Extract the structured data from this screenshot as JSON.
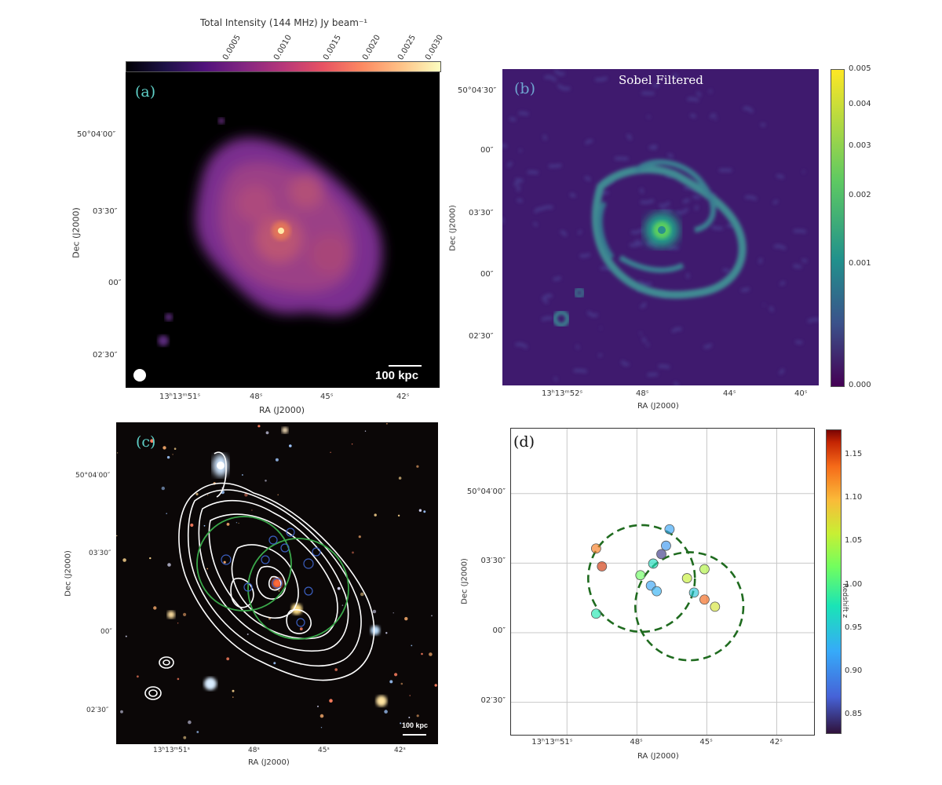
{
  "panel_a": {
    "label": "(a)",
    "colorbar_title": "Total Intensity (144 MHz) Jy beam⁻¹",
    "colorbar_ticks": [
      "0.0005",
      "0.0010",
      "0.0015",
      "0.0020",
      "0.0025",
      "0.0030"
    ],
    "scalebar": "100 kpc",
    "xticks": [
      "13ʰ13ᵐ51ˢ",
      "48ˢ",
      "45ˢ",
      "42ˢ"
    ],
    "yticks": [
      "50°04′00″",
      "03′30″",
      "00″",
      "02′30″"
    ],
    "xlabel": "RA (J2000)",
    "ylabel": "Dec (J2000)"
  },
  "panel_b": {
    "label": "(b)",
    "title": "Sobel Filtered",
    "colorbar_ticks": [
      "0.005",
      "0.004",
      "0.003",
      "0.002",
      "0.001",
      "0.000"
    ],
    "xticks": [
      "13ʰ13ᵐ52ˢ",
      "48ˢ",
      "44ˢ",
      "40ˢ"
    ],
    "yticks": [
      "50°04′30″",
      "00″",
      "03′30″",
      "00″",
      "02′30″"
    ],
    "xlabel": "RA (J2000)",
    "ylabel": "Dec (J2000)"
  },
  "panel_c": {
    "label": "(c)",
    "scalebar": "100 kpc",
    "xticks": [
      "13ʰ13ᵐ51ˢ",
      "48ˢ",
      "45ˢ",
      "42ˢ"
    ],
    "yticks": [
      "50°04′00″",
      "03′30″",
      "00″",
      "02′30″"
    ],
    "xlabel": "RA (J2000)",
    "ylabel": "Dec (J2000)"
  },
  "panel_d": {
    "label": "(d)",
    "xticks": [
      "13ʰ13ᵐ51ˢ",
      "48ˢ",
      "45ˢ",
      "42ˢ"
    ],
    "yticks": [
      "50°04′00″",
      "03′30″",
      "00″",
      "02′30″"
    ],
    "xlabel": "RA (J2000)",
    "ylabel": "Dec (J2000)",
    "colorbar_label": "Redshift z",
    "colorbar_ticks": [
      "1.15",
      "1.10",
      "1.05",
      "1.00",
      "0.95",
      "0.90",
      "0.85"
    ]
  },
  "chart_data": {
    "type": "scatter",
    "xlabel": "RA (J2000)",
    "ylabel": "Dec (J2000)",
    "color_label": "Redshift z",
    "color_range": [
      0.83,
      1.18
    ],
    "grid": true,
    "xticks": [
      "13ʰ13ᵐ51ˢ",
      "48ˢ",
      "45ˢ",
      "42ˢ"
    ],
    "yticks": [
      "50°04′00″",
      "03′30″",
      "00″",
      "02′30″"
    ],
    "x_unit": "RA seconds (13h13m)",
    "y_unit": "Dec arcsec offset from 50°03′00″",
    "points": [
      {
        "x": 49.75,
        "y": 36.3,
        "z": 1.13
      },
      {
        "x": 49.5,
        "y": 28.6,
        "z": 1.16
      },
      {
        "x": 46.6,
        "y": 44.6,
        "z": 0.92
      },
      {
        "x": 46.75,
        "y": 37.5,
        "z": 0.91
      },
      {
        "x": 46.95,
        "y": 33.9,
        "z": 0.85
      },
      {
        "x": 47.3,
        "y": 29.8,
        "z": 0.97
      },
      {
        "x": 47.85,
        "y": 24.8,
        "z": 1.02
      },
      {
        "x": 47.4,
        "y": 20.3,
        "z": 0.92
      },
      {
        "x": 47.15,
        "y": 17.9,
        "z": 0.93
      },
      {
        "x": 45.85,
        "y": 23.5,
        "z": 1.06
      },
      {
        "x": 45.55,
        "y": 17.3,
        "z": 0.95
      },
      {
        "x": 45.1,
        "y": 27.4,
        "z": 1.05
      },
      {
        "x": 45.1,
        "y": 14.3,
        "z": 1.14
      },
      {
        "x": 44.65,
        "y": 11.2,
        "z": 1.07
      },
      {
        "x": 49.75,
        "y": 8.2,
        "z": 0.98
      }
    ],
    "circles": [
      {
        "center_x": 47.8,
        "center_y": 23.4,
        "radius_arcsec": 23.0,
        "style": "dashed"
      },
      {
        "center_x": 45.75,
        "center_y": 11.4,
        "radius_arcsec": 23.3,
        "style": "dashed"
      }
    ]
  }
}
